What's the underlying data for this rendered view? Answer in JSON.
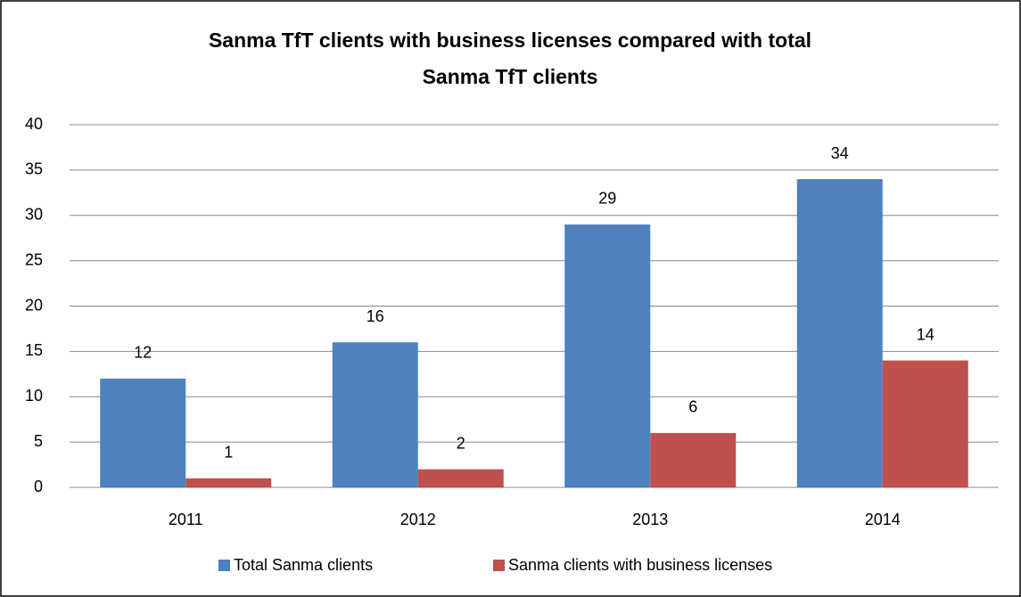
{
  "chart_data": {
    "type": "bar",
    "title": [
      "Sanma TfT clients with business licenses compared with total",
      "Sanma TfT clients"
    ],
    "categories": [
      "2011",
      "2012",
      "2013",
      "2014"
    ],
    "series": [
      {
        "name": "Total Sanma clients",
        "color": "#4f81bd",
        "values": [
          12,
          16,
          29,
          34
        ]
      },
      {
        "name": "Sanma clients with business licenses",
        "color": "#c0504d",
        "values": [
          1,
          2,
          6,
          14
        ]
      }
    ],
    "ylim": [
      0,
      40
    ],
    "yticks": [
      0,
      5,
      10,
      15,
      20,
      25,
      30,
      35,
      40
    ],
    "grid": true,
    "legend": "bottom"
  }
}
